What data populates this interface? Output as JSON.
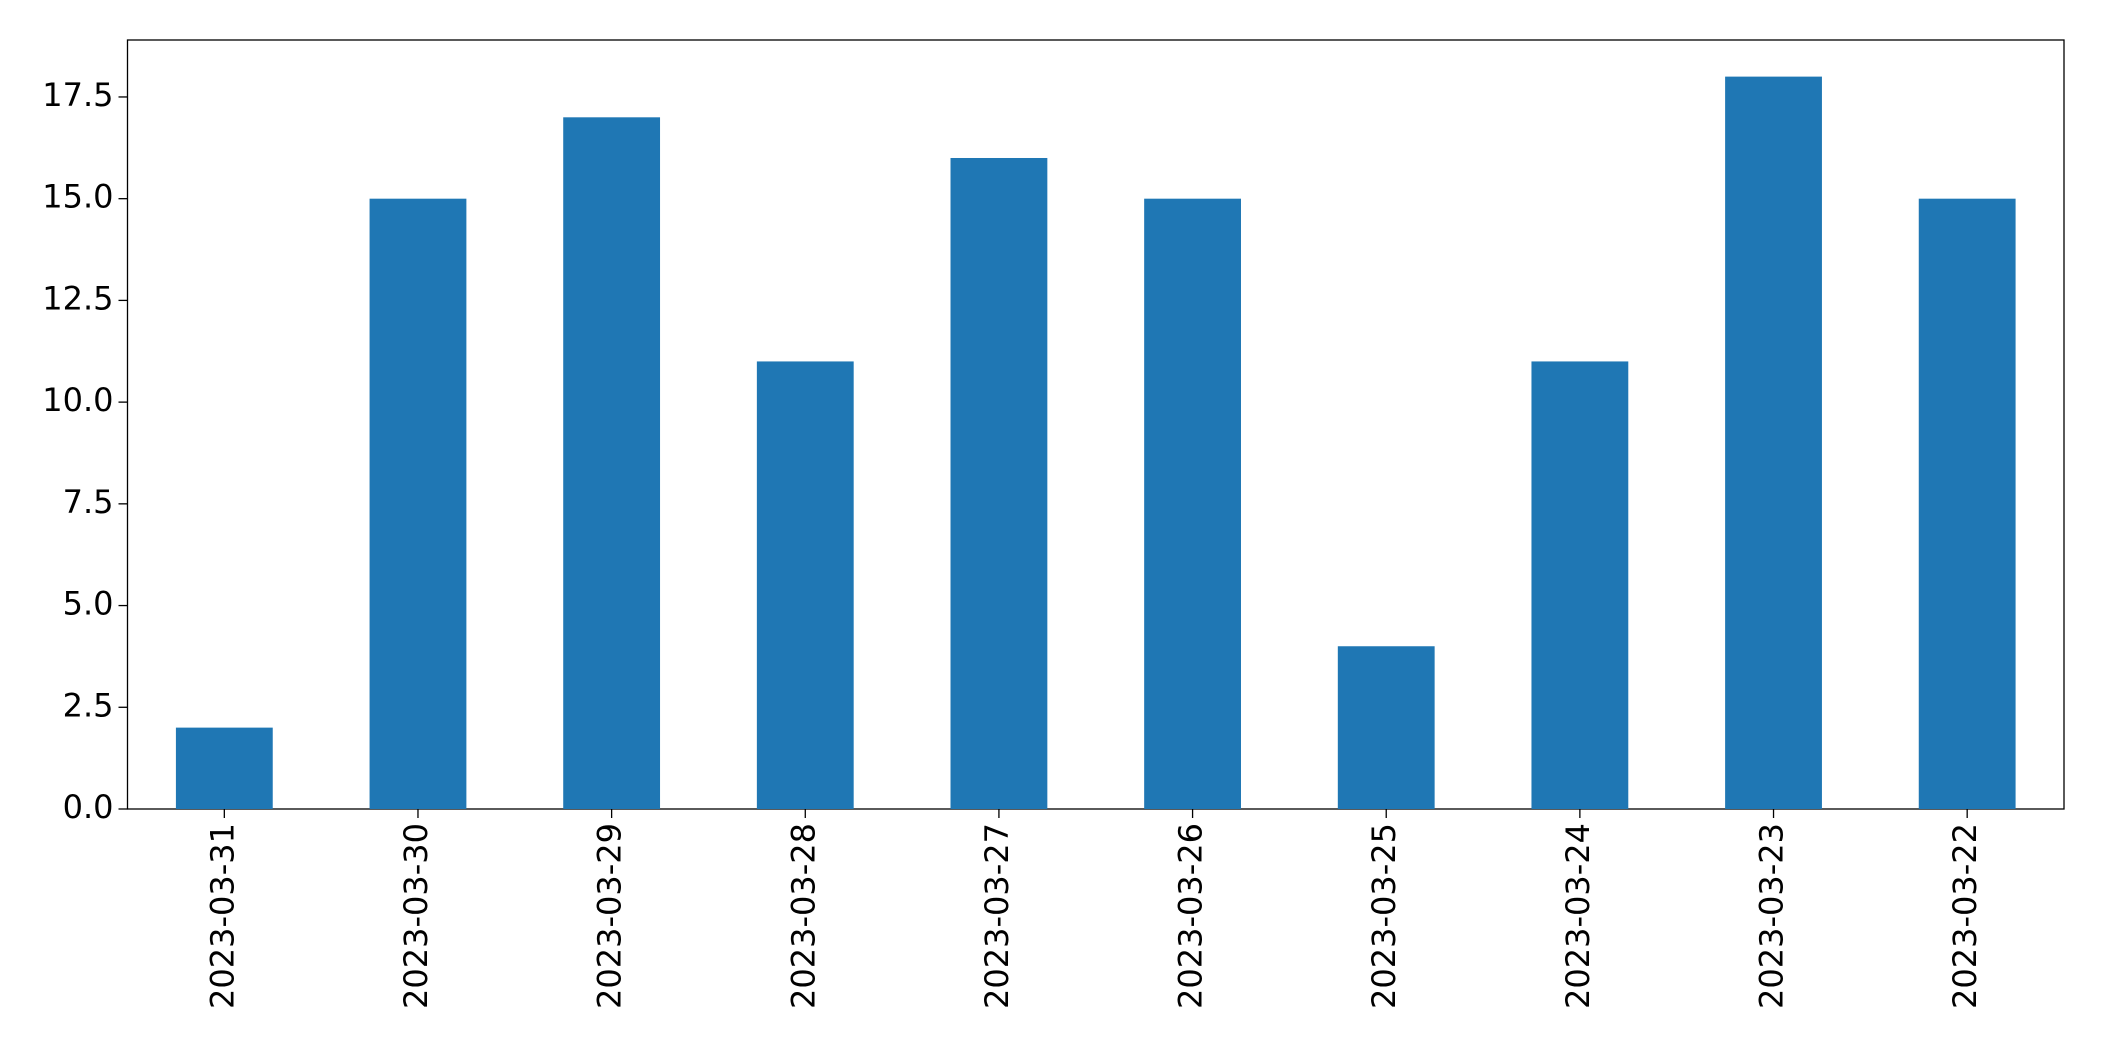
{
  "chart_data": {
    "type": "bar",
    "categories": [
      "2023-03-31",
      "2023-03-30",
      "2023-03-29",
      "2023-03-28",
      "2023-03-27",
      "2023-03-26",
      "2023-03-25",
      "2023-03-24",
      "2023-03-23",
      "2023-03-22"
    ],
    "values": [
      2,
      15,
      17,
      11,
      16,
      15,
      4,
      11,
      18,
      15
    ],
    "color": "#1f77b4",
    "ylim": [
      0,
      18.9
    ],
    "yticks": [
      {
        "value": 0,
        "label": "0.0"
      },
      2.5,
      {
        "value": 5,
        "label": "5.0"
      },
      7.5,
      {
        "value": 10,
        "label": "10.0"
      },
      12.5,
      {
        "value": 15,
        "label": "15.0"
      },
      17.5
    ],
    "grid": false
  }
}
